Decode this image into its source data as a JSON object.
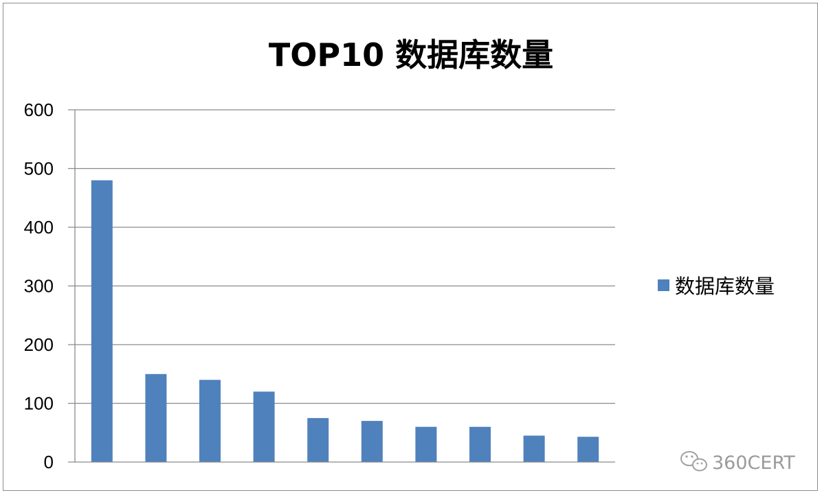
{
  "chart_data": {
    "type": "bar",
    "title": "TOP10 数据库数量",
    "categories": [
      "",
      "",
      "",
      "",
      "",
      "",
      "",
      "",
      "",
      ""
    ],
    "series": [
      {
        "name": "数据库数量",
        "color": "#4f81bd",
        "values": [
          480,
          150,
          140,
          120,
          75,
          70,
          60,
          60,
          45,
          43
        ]
      }
    ],
    "xlabel": "",
    "ylabel": "",
    "ylim": [
      0,
      600
    ],
    "yticks": [
      "0",
      "100",
      "200",
      "300",
      "400",
      "500",
      "600"
    ],
    "grid": true,
    "legend_position": "right"
  },
  "watermark": {
    "text": "360CERT",
    "icon": "wechat-icon"
  }
}
